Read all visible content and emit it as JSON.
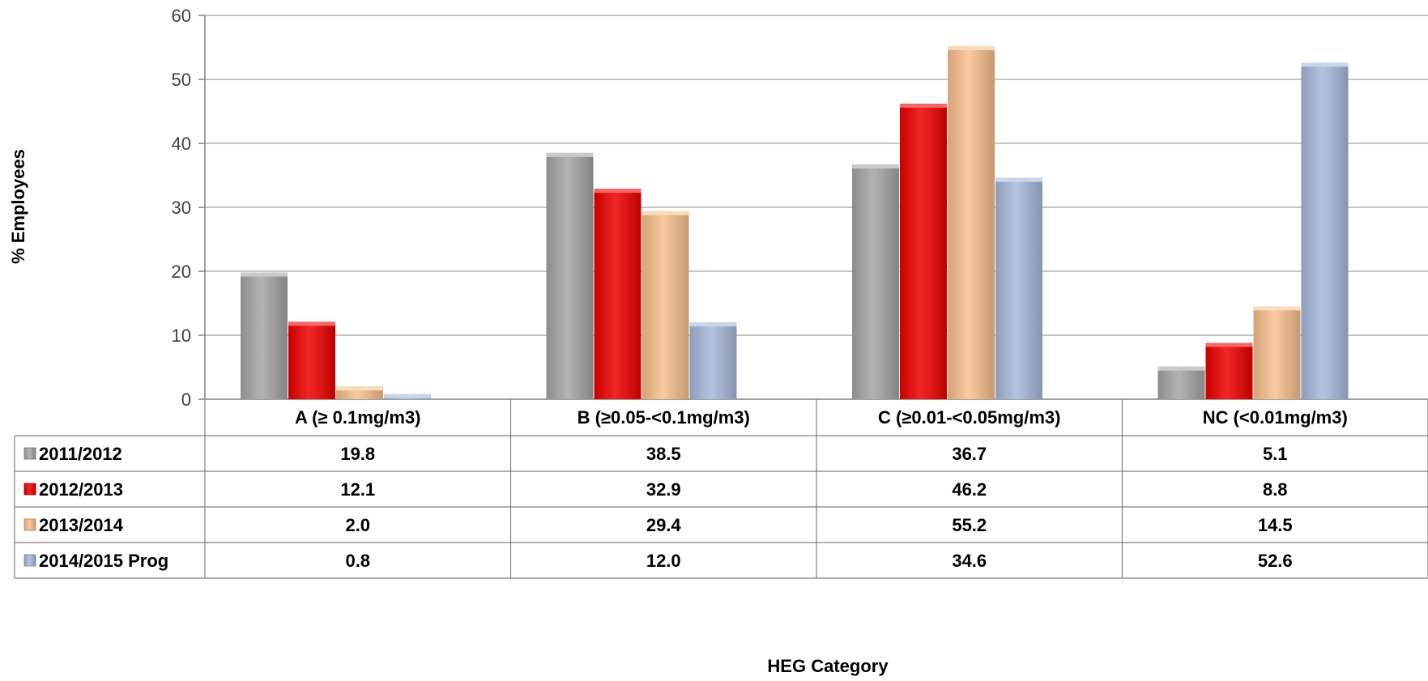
{
  "chart_data": {
    "type": "bar",
    "xlabel": "HEG Category",
    "ylabel": "% Employees",
    "ylim": [
      0,
      60
    ],
    "yticks": [
      0,
      10,
      20,
      30,
      40,
      50,
      60
    ],
    "grid": true,
    "legend_placement": "data-table-left",
    "categories": [
      "A (≥ 0.1mg/m3)",
      "B (≥0.05-<0.1mg/m3)",
      "C (≥0.01-<0.05mg/m3)",
      "NC (<0.01mg/m3)"
    ],
    "series": [
      {
        "name": "2011/2012",
        "values": [
          19.8,
          38.5,
          36.7,
          5.1
        ],
        "value_labels": [
          "19.8",
          "38.5",
          "36.7",
          "5.1"
        ],
        "color": "#a6a6a6"
      },
      {
        "name": "2012/2013",
        "values": [
          12.1,
          32.9,
          46.2,
          8.8
        ],
        "value_labels": [
          "12.1",
          "32.9",
          "46.2",
          "8.8"
        ],
        "color": "#ee0000"
      },
      {
        "name": "2013/2014",
        "values": [
          2.0,
          29.4,
          55.2,
          14.5
        ],
        "value_labels": [
          "2.0",
          "29.4",
          "55.2",
          "14.5"
        ],
        "color": "#f9c08e"
      },
      {
        "name": "2014/2015 Prog",
        "values": [
          0.8,
          12.0,
          34.6,
          52.6
        ],
        "value_labels": [
          "0.8",
          "12.0",
          "34.6",
          "52.6"
        ],
        "color": "#a7b9da"
      }
    ]
  }
}
